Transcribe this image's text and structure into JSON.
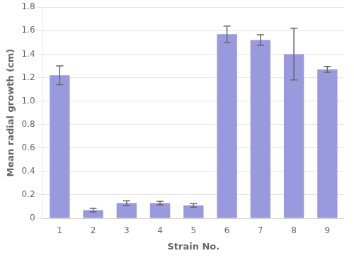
{
  "chart_data": {
    "type": "bar",
    "xlabel": "Strain No.",
    "ylabel": "Mean radial growth (cm)",
    "categories": [
      "1",
      "2",
      "3",
      "4",
      "5",
      "6",
      "7",
      "8",
      "9"
    ],
    "values": [
      1.22,
      0.07,
      0.13,
      0.13,
      0.11,
      1.57,
      1.52,
      1.4,
      1.27
    ],
    "errors": [
      0.08,
      0.015,
      0.02,
      0.015,
      0.015,
      0.07,
      0.045,
      0.22,
      0.025
    ],
    "color": "#9999dd",
    "ylim": [
      0,
      1.8
    ],
    "yticks": [
      0,
      0.2,
      0.4,
      0.6,
      0.8,
      {
        "value": 1,
        "label": "1.0"
      },
      1.2,
      1.4,
      1.6,
      1.8
    ],
    "grid": true
  }
}
